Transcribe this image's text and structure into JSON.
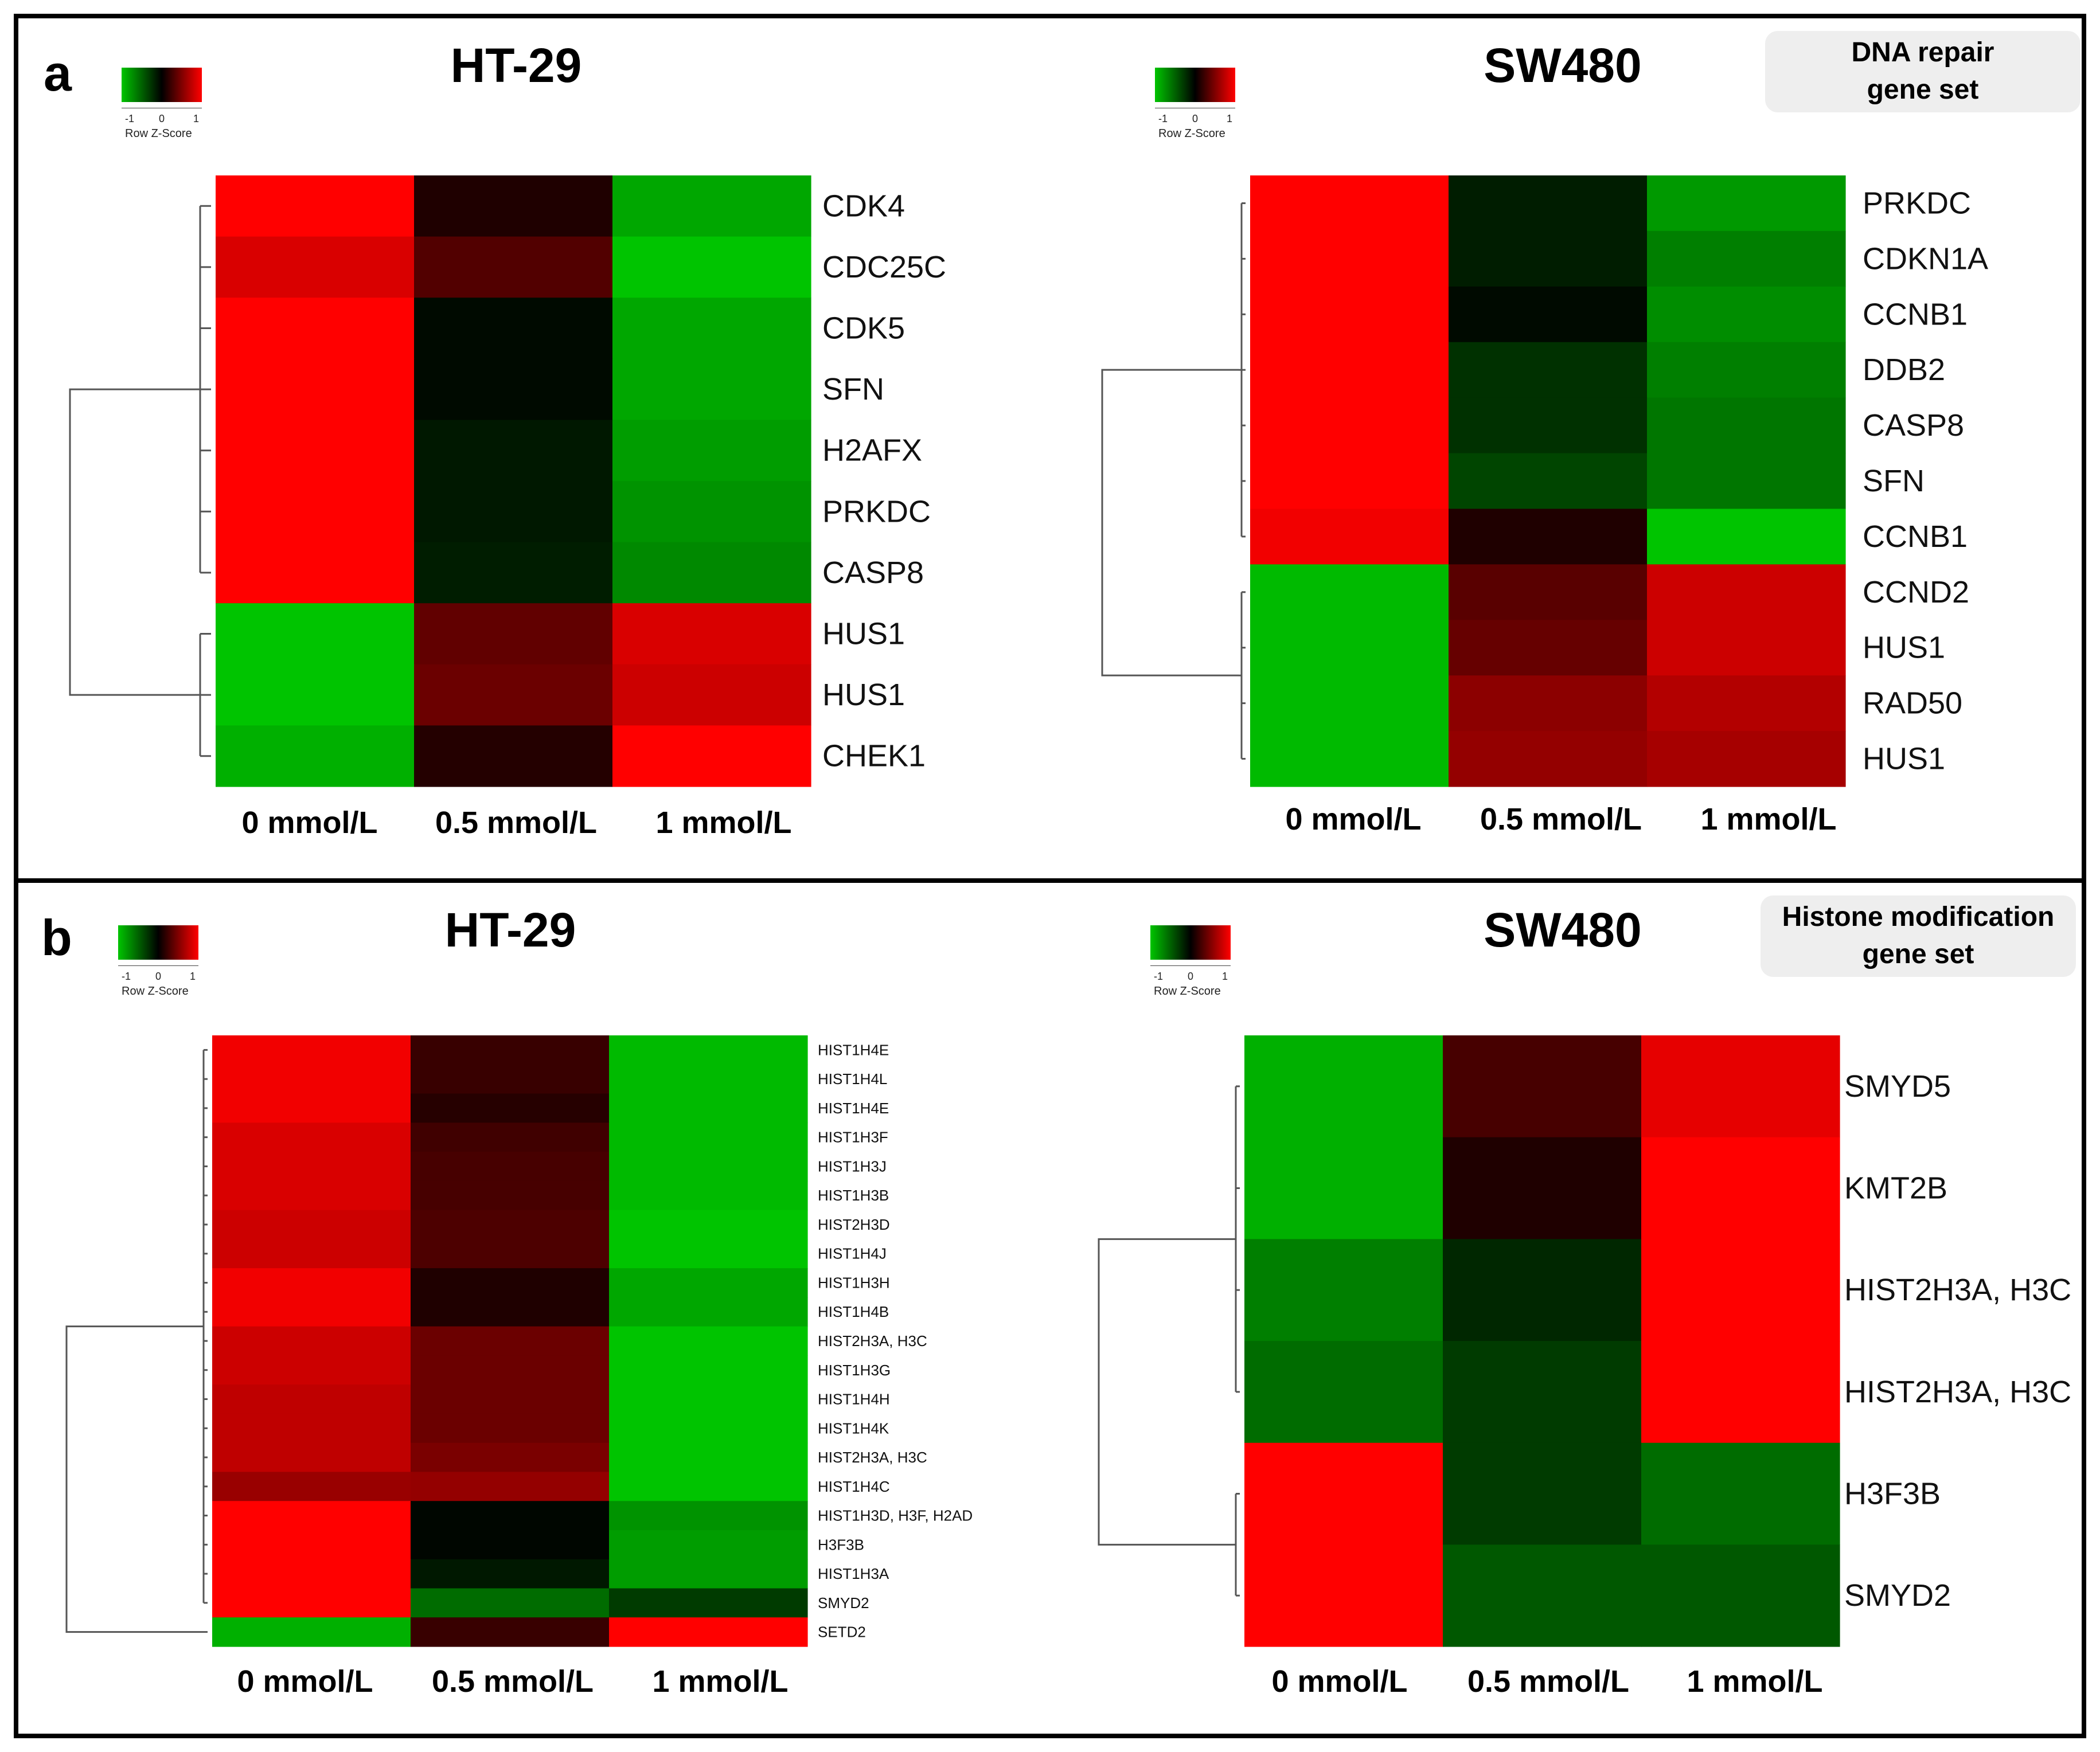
{
  "colors": {
    "low": "#00c400",
    "mid": "#000000",
    "high": "#ff0000"
  },
  "panels": [
    {
      "letter": "a",
      "gene_set": [
        "DNA repair",
        "gene set"
      ],
      "legend": {
        "ticks": [
          "-1",
          "0",
          "1"
        ],
        "title": "Row Z-Score"
      }
    },
    {
      "letter": "b",
      "gene_set": [
        "Histone modification",
        "gene set"
      ],
      "legend": {
        "ticks": [
          "-1",
          "0",
          "1"
        ],
        "title": "Row Z-Score"
      }
    }
  ],
  "chart_data": [
    {
      "type": "heatmap",
      "panel": "a",
      "title": "HT-29",
      "columns": [
        "0 mmol/L",
        "0.5 mmol/L",
        "1 mmol/L"
      ],
      "rows": [
        "CDK4",
        "CDC25C",
        "CDK5",
        "SFN",
        "H2AFX",
        "PRKDC",
        "CASP8",
        "HUS1",
        "HUS1",
        "CHEK1"
      ],
      "values": [
        [
          1.15,
          0.12,
          -0.85
        ],
        [
          0.85,
          0.32,
          -1.0
        ],
        [
          1.15,
          -0.05,
          -0.85
        ],
        [
          1.15,
          -0.05,
          -0.85
        ],
        [
          1.15,
          -0.12,
          -0.8
        ],
        [
          1.15,
          -0.12,
          -0.75
        ],
        [
          1.15,
          -0.15,
          -0.7
        ],
        [
          -1.0,
          0.38,
          0.85
        ],
        [
          -1.0,
          0.42,
          0.8
        ],
        [
          -0.9,
          0.14,
          1.15
        ]
      ],
      "color_scale": {
        "ticks": [
          "-1",
          "0",
          "1"
        ],
        "label": "Row Z-Score"
      },
      "dendrogram": "left"
    },
    {
      "type": "heatmap",
      "panel": "a",
      "title": "SW480",
      "columns": [
        "0 mmol/L",
        "0.5 mmol/L",
        "1 mmol/L"
      ],
      "rows": [
        "PRKDC",
        "CDKN1A",
        "CCNB1",
        "DDB2",
        "CASP8",
        "SFN",
        "CCNB1",
        "CCND2",
        "HUS1",
        "RAD50",
        "HUS1"
      ],
      "values": [
        [
          1.15,
          -0.15,
          -0.78
        ],
        [
          1.15,
          -0.15,
          -0.65
        ],
        [
          1.15,
          -0.05,
          -0.72
        ],
        [
          1.15,
          -0.25,
          -0.65
        ],
        [
          1.15,
          -0.25,
          -0.6
        ],
        [
          1.15,
          -0.35,
          -0.6
        ],
        [
          0.95,
          0.12,
          -1.0
        ],
        [
          -0.95,
          0.35,
          0.8
        ],
        [
          -0.95,
          0.4,
          0.8
        ],
        [
          -0.95,
          0.55,
          0.7
        ],
        [
          -0.95,
          0.58,
          0.65
        ]
      ],
      "color_scale": {
        "ticks": [
          "-1",
          "0",
          "1"
        ],
        "label": "Row Z-Score"
      },
      "dendrogram": "left"
    },
    {
      "type": "heatmap",
      "panel": "b",
      "title": "HT-29",
      "columns": [
        "0 mmol/L",
        "0.5 mmol/L",
        "1 mmol/L"
      ],
      "rows": [
        "HIST1H4E",
        "HIST1H4L",
        "HIST1H4E",
        "HIST1H3F",
        "HIST1H3J",
        "HIST1H3B",
        "HIST2H3D",
        "HIST1H4J",
        "HIST1H3H",
        "HIST1H4B",
        "HIST2H3A, H3C",
        "HIST1H3G",
        "HIST1H4H",
        "HIST1H4K",
        "HIST2H3A, H3C",
        "HIST1H4C",
        "HIST1H3D, H3F, H2AD",
        "H3F3B",
        "HIST1H3A",
        "SMYD2",
        "SETD2"
      ],
      "values": [
        [
          0.95,
          0.22,
          -0.95
        ],
        [
          0.95,
          0.22,
          -0.95
        ],
        [
          0.95,
          0.15,
          -0.95
        ],
        [
          0.85,
          0.25,
          -0.95
        ],
        [
          0.85,
          0.28,
          -0.95
        ],
        [
          0.85,
          0.28,
          -0.95
        ],
        [
          0.8,
          0.3,
          -1.0
        ],
        [
          0.8,
          0.3,
          -1.0
        ],
        [
          0.95,
          0.12,
          -0.85
        ],
        [
          0.95,
          0.12,
          -0.85
        ],
        [
          0.8,
          0.42,
          -1.0
        ],
        [
          0.8,
          0.42,
          -1.0
        ],
        [
          0.75,
          0.42,
          -1.0
        ],
        [
          0.75,
          0.42,
          -1.0
        ],
        [
          0.75,
          0.48,
          -1.0
        ],
        [
          0.6,
          0.58,
          -1.0
        ],
        [
          1.1,
          -0.03,
          -0.75
        ],
        [
          1.1,
          -0.03,
          -0.8
        ],
        [
          1.1,
          -0.12,
          -0.8
        ],
        [
          1.1,
          -0.55,
          -0.3
        ],
        [
          -0.9,
          0.22,
          1.1
        ]
      ],
      "color_scale": {
        "ticks": [
          "-1",
          "0",
          "1"
        ],
        "label": "Row Z-Score"
      },
      "dendrogram": "left"
    },
    {
      "type": "heatmap",
      "panel": "b",
      "title": "SW480",
      "columns": [
        "0 mmol/L",
        "0.5 mmol/L",
        "1 mmol/L"
      ],
      "rows": [
        "SMYD5",
        "KMT2B",
        "HIST2H3A, H3C",
        "HIST2H3A, H3C",
        "H3F3B",
        "SMYD2"
      ],
      "values": [
        [
          -0.9,
          0.28,
          0.9
        ],
        [
          -0.9,
          0.12,
          1.1
        ],
        [
          -0.65,
          -0.2,
          1.1
        ],
        [
          -0.55,
          -0.3,
          1.1
        ],
        [
          1.1,
          -0.3,
          -0.55
        ],
        [
          1.1,
          -0.45,
          -0.45
        ]
      ],
      "color_scale": {
        "ticks": [
          "-1",
          "0",
          "1"
        ],
        "label": "Row Z-Score"
      },
      "dendrogram": "left"
    }
  ]
}
